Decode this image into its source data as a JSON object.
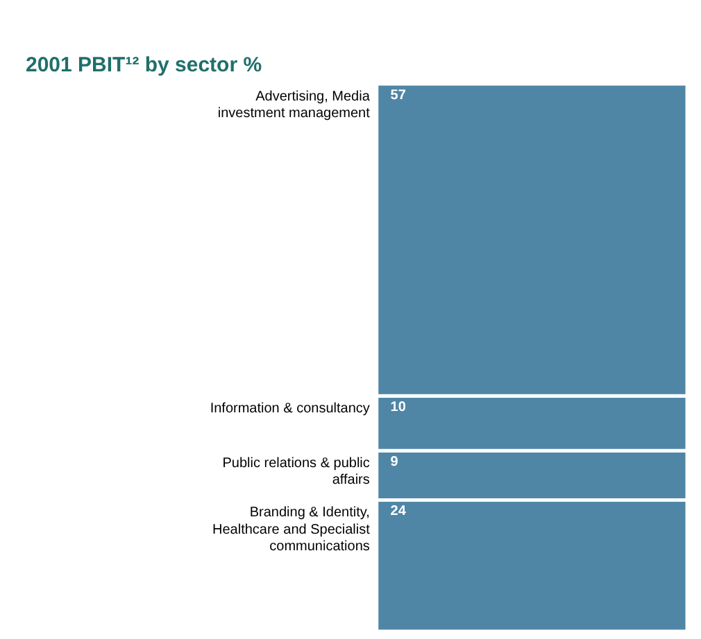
{
  "chart_data": {
    "type": "bar",
    "stacked": true,
    "title": "2001 PBIT¹² by sector %",
    "categories": [
      null
    ],
    "data_labels": true,
    "series": [
      {
        "name": "Branding & Identity, Healthcare and Specialist communications",
        "color": "#4f86a6",
        "values": [
          24
        ]
      },
      {
        "name": "Public relations & public affairs",
        "color": "#4f86a6",
        "values": [
          9
        ]
      },
      {
        "name": "Information & consultancy",
        "color": "#4f86a6",
        "values": [
          10
        ]
      },
      {
        "name": "Advertising, Media investment management",
        "color": "#4f86a6",
        "values": [
          57
        ]
      }
    ]
  }
}
